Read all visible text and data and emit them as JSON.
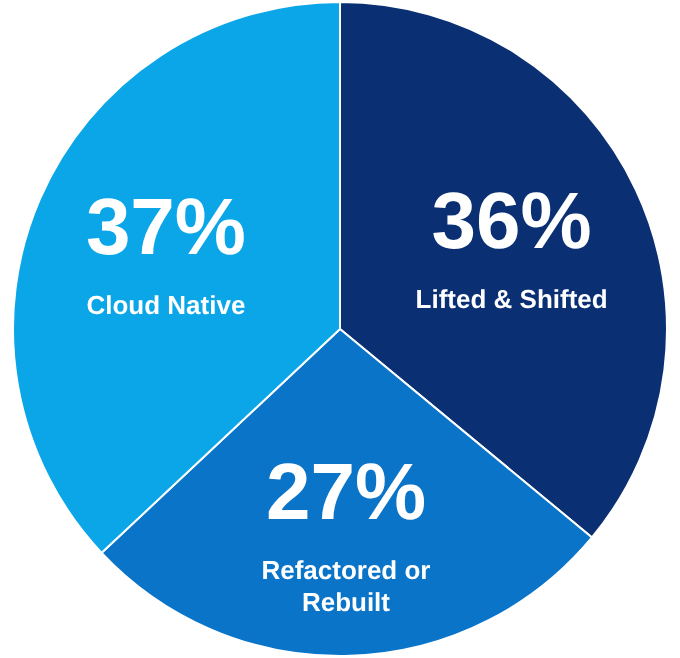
{
  "chart_data": {
    "type": "pie",
    "categories": [
      "Lifted & Shifted",
      "Refactored or Rebuilt",
      "Cloud Native"
    ],
    "values": [
      36,
      27,
      37
    ],
    "value_labels": [
      "36%",
      "27%",
      "37%"
    ],
    "colors": [
      "#0a2f73",
      "#0a74c9",
      "#0aa6e8"
    ]
  }
}
